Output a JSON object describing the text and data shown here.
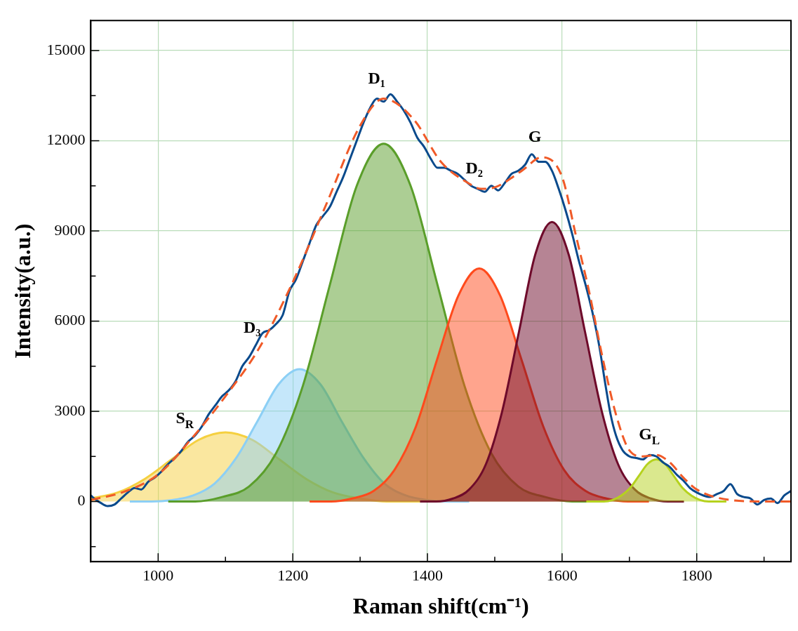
{
  "chart_data": {
    "type": "line",
    "xlabel": "Raman shift(cm⁻¹)",
    "ylabel": "Intensity(a.u.)",
    "xlim": [
      900,
      1940
    ],
    "ylim": [
      -2000,
      16000
    ],
    "xticks": [
      1000,
      {
        "value": 1100,
        "label": null
      },
      1200,
      {
        "value": 1300,
        "label": null
      },
      1400,
      {
        "value": 1500,
        "label": null
      },
      1600,
      {
        "value": 1700,
        "label": null
      },
      1800,
      {
        "value": 1900,
        "label": null
      }
    ],
    "yticks": [
      {
        "value": -1500,
        "label": null
      },
      0,
      {
        "value": 1500,
        "label": null
      },
      3000,
      {
        "value": 4500,
        "label": null
      },
      6000,
      {
        "value": 7500,
        "label": null
      },
      9000,
      {
        "value": 10500,
        "label": null
      },
      12000,
      {
        "value": 13500,
        "label": null
      },
      15000
    ],
    "grid": true,
    "legend": false,
    "marker": "none",
    "series": [
      {
        "type": "area",
        "color": "#f5d040",
        "x": [
          900,
          940,
          980,
          1020,
          1060,
          1100,
          1140,
          1180,
          1220,
          1260,
          1300,
          1340,
          1380,
          1420
        ],
        "values": [
          100,
          300,
          750,
          1400,
          2050,
          2300,
          2050,
          1400,
          750,
          300,
          100,
          0,
          0,
          0
        ]
      },
      {
        "type": "area",
        "color": "#8ccff5",
        "x": [
          958,
          990,
          1021,
          1052,
          1084,
          1116,
          1147,
          1179,
          1210,
          1241,
          1273,
          1305,
          1336,
          1368,
          1399,
          1431,
          1462
        ],
        "values": [
          0,
          0,
          50,
          200,
          600,
          1450,
          2650,
          3900,
          4400,
          3900,
          2650,
          1450,
          600,
          200,
          50,
          0,
          0
        ]
      },
      {
        "type": "area",
        "color": "#5a9e2a",
        "x": [
          1015,
          1055,
          1095,
          1135,
          1175,
          1215,
          1255,
          1295,
          1335,
          1375,
          1415,
          1455,
          1495,
          1535,
          1575,
          1615,
          1655
        ],
        "values": [
          0,
          0,
          150,
          500,
          1600,
          3850,
          7200,
          10500,
          11900,
          10500,
          7200,
          3850,
          1600,
          500,
          150,
          0,
          0
        ]
      },
      {
        "type": "area",
        "color": "#ff4a1c",
        "x": [
          1225,
          1257,
          1288,
          1320,
          1351,
          1383,
          1414,
          1446,
          1477,
          1508,
          1540,
          1572,
          1603,
          1635,
          1666,
          1698,
          1729
        ],
        "values": [
          0,
          0,
          100,
          350,
          1050,
          2500,
          4700,
          6850,
          7750,
          6850,
          4700,
          2500,
          1050,
          350,
          100,
          0,
          0
        ]
      },
      {
        "type": "area",
        "color": "#6e0a2a",
        "x": [
          1389,
          1413,
          1438,
          1462,
          1487,
          1511,
          1536,
          1560,
          1585,
          1610,
          1634,
          1659,
          1683,
          1708,
          1732,
          1757,
          1781
        ],
        "values": [
          0,
          0,
          100,
          400,
          1250,
          3000,
          5650,
          8200,
          9300,
          8200,
          5650,
          3000,
          1250,
          400,
          100,
          0,
          0
        ]
      },
      {
        "type": "area",
        "color": "#b5d21e",
        "x": [
          1636,
          1649,
          1662,
          1675,
          1688,
          1701,
          1714,
          1727,
          1740,
          1753,
          1766,
          1779,
          1792,
          1805,
          1818,
          1831,
          1844
        ],
        "values": [
          0,
          0,
          0,
          50,
          200,
          450,
          850,
          1250,
          1400,
          1250,
          850,
          450,
          200,
          50,
          0,
          0,
          0
        ]
      },
      {
        "type": "line",
        "color": "#0a4a8c",
        "x": [
          900,
          905,
          915,
          925,
          935,
          945,
          955,
          965,
          975,
          985,
          995,
          1005,
          1015,
          1025,
          1035,
          1045,
          1055,
          1065,
          1075,
          1085,
          1095,
          1105,
          1115,
          1125,
          1135,
          1145,
          1155,
          1165,
          1175,
          1185,
          1195,
          1205,
          1215,
          1225,
          1235,
          1245,
          1255,
          1265,
          1275,
          1285,
          1295,
          1305,
          1315,
          1325,
          1335,
          1345,
          1355,
          1365,
          1375,
          1385,
          1395,
          1405,
          1415,
          1425,
          1435,
          1445,
          1455,
          1465,
          1475,
          1485,
          1495,
          1505,
          1515,
          1525,
          1535,
          1545,
          1555,
          1565,
          1575,
          1585,
          1595,
          1605,
          1615,
          1625,
          1635,
          1645,
          1655,
          1665,
          1672,
          1680,
          1690,
          1700,
          1710,
          1720,
          1730,
          1740,
          1750,
          1760,
          1770,
          1780,
          1790,
          1800,
          1810,
          1820,
          1830,
          1840,
          1850,
          1860,
          1870,
          1880,
          1890,
          1900,
          1910,
          1920,
          1930,
          1940
        ],
        "values": [
          200,
          100,
          -50,
          -150,
          -100,
          100,
          300,
          450,
          400,
          650,
          800,
          1000,
          1250,
          1450,
          1700,
          2000,
          2200,
          2500,
          2900,
          3200,
          3500,
          3700,
          4000,
          4500,
          4800,
          5200,
          5600,
          5700,
          5900,
          6200,
          7000,
          7400,
          8000,
          8600,
          9200,
          9500,
          9800,
          10300,
          10800,
          11400,
          12000,
          12600,
          13100,
          13400,
          13300,
          13550,
          13300,
          13000,
          12600,
          12100,
          11800,
          11400,
          11100,
          11100,
          11000,
          10900,
          10700,
          10500,
          10400,
          10300,
          10500,
          10350,
          10600,
          10900,
          11000,
          11200,
          11550,
          11300,
          11300,
          11000,
          10400,
          9700,
          8900,
          8000,
          7200,
          6300,
          5200,
          3800,
          2900,
          2200,
          1700,
          1500,
          1450,
          1400,
          1550,
          1500,
          1300,
          1150,
          900,
          700,
          450,
          300,
          200,
          150,
          250,
          350,
          580,
          250,
          150,
          100,
          -100,
          50,
          100,
          -50,
          200,
          350
        ]
      },
      {
        "type": "line",
        "color": "#f05a28",
        "line_style": "dashed",
        "x": [
          900,
          950,
          1000,
          1050,
          1100,
          1150,
          1200,
          1250,
          1300,
          1335,
          1380,
          1420,
          1460,
          1480,
          1500,
          1540,
          1570,
          1600,
          1620,
          1640,
          1660,
          1680,
          1700,
          1720,
          1740,
          1760,
          1780,
          1800,
          1850,
          1900,
          1940
        ],
        "values": [
          50,
          330,
          900,
          2100,
          3500,
          5100,
          7300,
          9900,
          12500,
          13400,
          12700,
          11300,
          10600,
          10400,
          10450,
          11000,
          11450,
          10800,
          8900,
          7000,
          4800,
          2900,
          1700,
          1500,
          1550,
          1300,
          800,
          400,
          50,
          0,
          0
        ]
      }
    ],
    "annotations": [
      {
        "text": "S$_{R}$",
        "x": 1050,
        "y": 2100
      },
      {
        "text": "D₃",
        "x": 1150,
        "y": 5100
      },
      {
        "text": "D₁",
        "x": 1335,
        "y": 13400
      },
      {
        "text": "D₂",
        "x": 1480,
        "y": 10400
      },
      {
        "text": "G",
        "x": 1570,
        "y": 11450
      },
      {
        "text": "G$_{L}$",
        "x": 1740,
        "y": 1550
      }
    ]
  }
}
